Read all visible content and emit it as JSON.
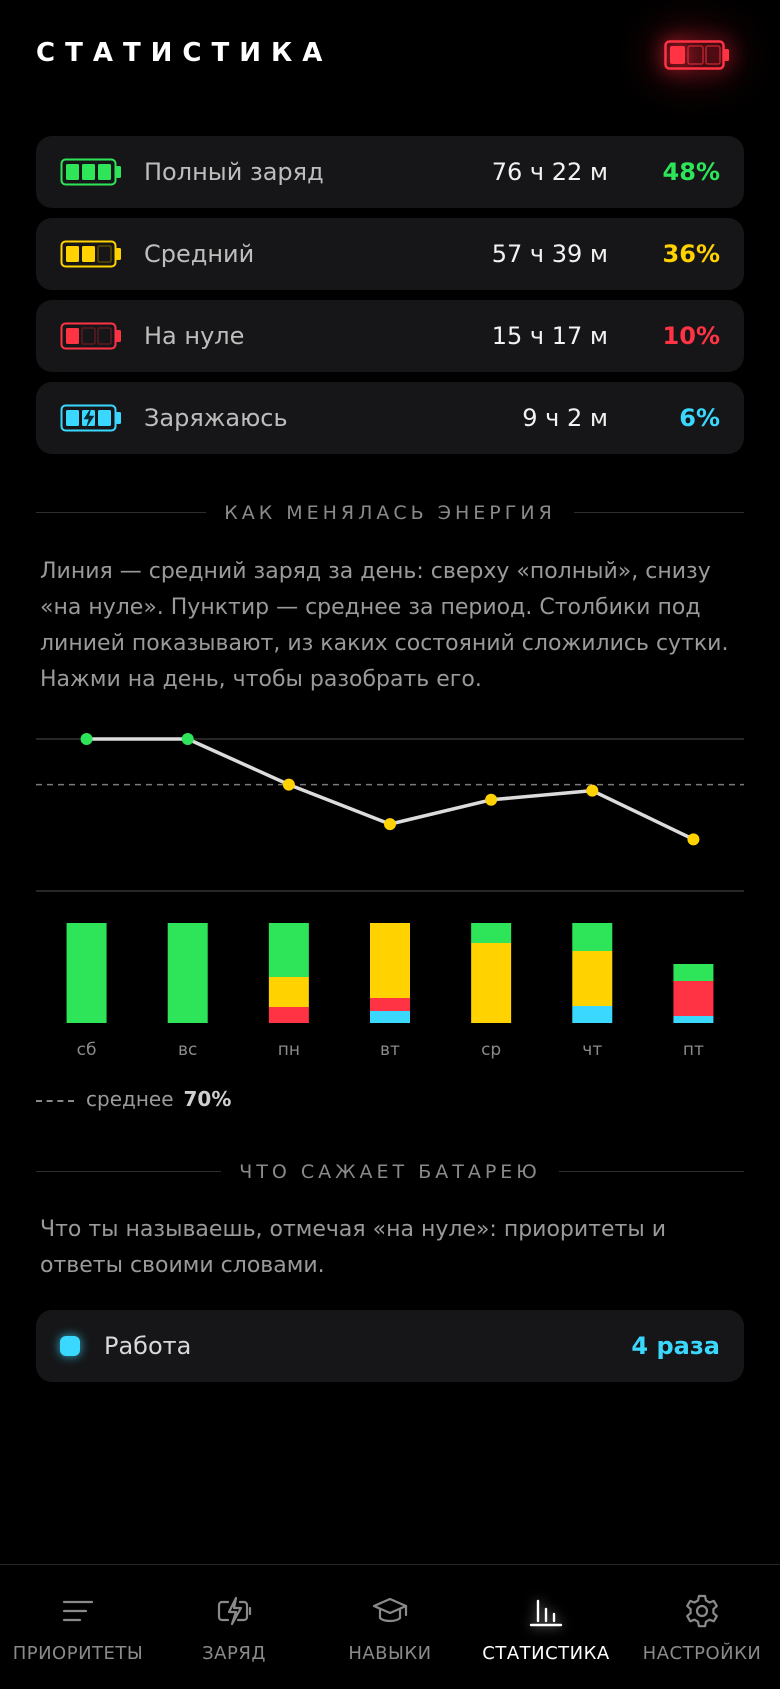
{
  "header": {
    "title": "СТАТИСТИКА",
    "battery_icon": "battery-low-red-icon"
  },
  "stats": [
    {
      "label": "Полный заряд",
      "duration": "76 ч 22 м",
      "percent": "48%",
      "color": "#2ee55a",
      "icon": "battery-full-icon"
    },
    {
      "label": "Средний",
      "duration": "57 ч 39 м",
      "percent": "36%",
      "color": "#ffd200",
      "icon": "battery-medium-icon"
    },
    {
      "label": "На нуле",
      "duration": "15 ч 17 м",
      "percent": "10%",
      "color": "#ff3344",
      "icon": "battery-empty-icon"
    },
    {
      "label": "Заряжаюсь",
      "duration": "9 ч 2 м",
      "percent": "6%",
      "color": "#3ad8ff",
      "icon": "battery-charging-icon"
    }
  ],
  "energy_section": {
    "title": "КАК МЕНЯЛАСЬ ЭНЕРГИЯ",
    "description": "Линия — средний заряд за день: сверху «полный», снизу «на нуле». Пунктир — среднее за период. Столбики под линией показывают, из каких состояний сложились сутки. Нажми на день, чтобы разобрать его."
  },
  "chart_data": {
    "type": "line",
    "categories": [
      "сб",
      "вс",
      "пн",
      "вт",
      "ср",
      "чт",
      "пт"
    ],
    "line_values": [
      100,
      100,
      70,
      44,
      60,
      66,
      34
    ],
    "line_ylim": [
      0,
      100
    ],
    "average": 70,
    "stacked_bars": {
      "type": "bar",
      "stacked": true,
      "series": [
        {
          "name": "Полный заряд",
          "color": "#2ee55a",
          "values": [
            1.0,
            1.0,
            0.54,
            0.0,
            0.2,
            0.28,
            0.17
          ]
        },
        {
          "name": "Средний",
          "color": "#ffd200",
          "values": [
            0.0,
            0.0,
            0.3,
            0.75,
            0.8,
            0.55,
            0.0
          ]
        },
        {
          "name": "На нуле",
          "color": "#ff3344",
          "values": [
            0.0,
            0.0,
            0.16,
            0.13,
            0.0,
            0.0,
            0.35
          ]
        },
        {
          "name": "Заряжаюсь",
          "color": "#3ad8ff",
          "values": [
            0.0,
            0.0,
            0.0,
            0.12,
            0.0,
            0.17,
            0.07
          ]
        }
      ],
      "day_totals": [
        1.0,
        1.0,
        1.0,
        1.0,
        1.0,
        1.0,
        0.59
      ]
    }
  },
  "legend": {
    "label": "среднее",
    "value": "70%"
  },
  "drain_section": {
    "title": "ЧТО САЖАЕТ БАТАРЕЮ",
    "description": "Что ты называешь, отмечая «на нуле»: приоритеты и ответы своими словами.",
    "items": [
      {
        "label": "Работа",
        "count": "4 раза",
        "color": "#3ad8ff"
      }
    ]
  },
  "tabs": [
    {
      "label": "ПРИОРИТЕТЫ",
      "icon": "list-icon",
      "active": false
    },
    {
      "label": "ЗАРЯД",
      "icon": "charge-icon",
      "active": false
    },
    {
      "label": "НАВЫКИ",
      "icon": "graduation-cap-icon",
      "active": false
    },
    {
      "label": "СТАТИСТИКА",
      "icon": "bar-chart-icon",
      "active": true
    },
    {
      "label": "НАСТРОЙКИ",
      "icon": "gear-icon",
      "active": false
    }
  ]
}
